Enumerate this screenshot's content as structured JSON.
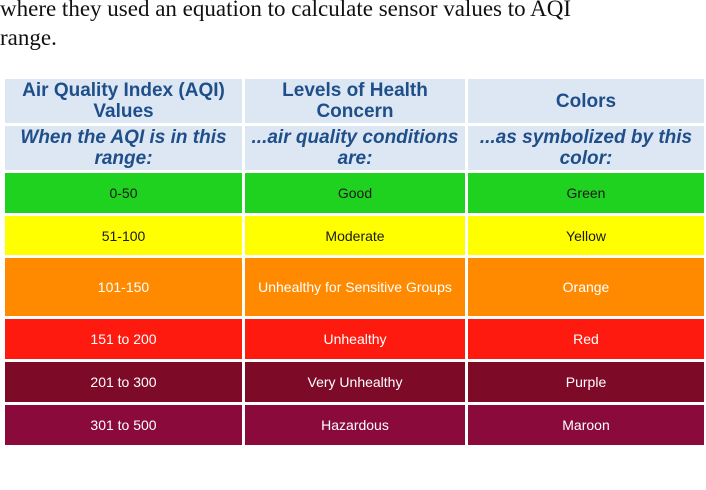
{
  "intro_text": {
    "line1": "where they used an equation to calculate sensor values to AQI",
    "line2": "range."
  },
  "table": {
    "headers": [
      {
        "title": "Air Quality Index (AQI) Values",
        "subtitle": "When the AQI is in this range:"
      },
      {
        "title": "Levels of Health Concern",
        "subtitle": "...air quality conditions are:"
      },
      {
        "title": "Colors",
        "subtitle": "...as symbolized by this color:"
      }
    ],
    "rows": [
      {
        "range": "0-50",
        "level": "Good",
        "color_name": "Green",
        "fill": "#1fd21f"
      },
      {
        "range": "51-100",
        "level": "Moderate",
        "color_name": "Yellow",
        "fill": "#ffff00"
      },
      {
        "range": "101-150",
        "level": "Unhealthy for Sensitive Groups",
        "color_name": "Orange",
        "fill": "#ff8a00"
      },
      {
        "range": "151 to 200",
        "level": "Unhealthy",
        "color_name": "Red",
        "fill": "#ff1a0f"
      },
      {
        "range": "201 to 300",
        "level": "Very Unhealthy",
        "color_name": "Purple",
        "fill": "#7d0b28"
      },
      {
        "range": "301 to 500",
        "level": "Hazardous",
        "color_name": "Maroon",
        "fill": "#8a0a3c"
      }
    ]
  },
  "colors": {
    "header_bg": "#dde7f3",
    "header_text": "#1f4f8a"
  }
}
